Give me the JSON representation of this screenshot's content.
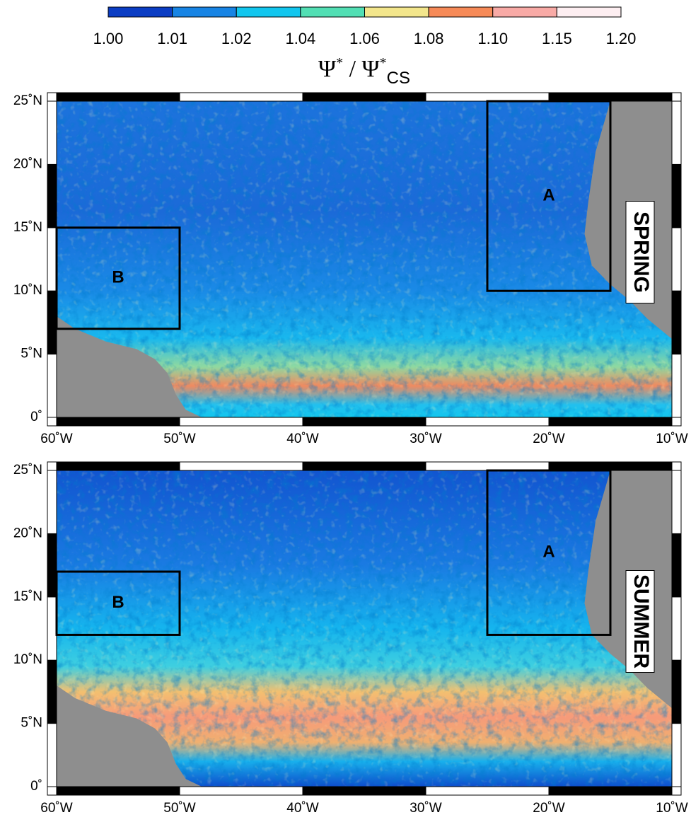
{
  "colorbar": {
    "ticks": [
      {
        "value": 1.0,
        "label": "1.00"
      },
      {
        "value": 1.01,
        "label": "1.01"
      },
      {
        "value": 1.02,
        "label": "1.02"
      },
      {
        "value": 1.04,
        "label": "1.04"
      },
      {
        "value": 1.06,
        "label": "1.06"
      },
      {
        "value": 1.08,
        "label": "1.08"
      },
      {
        "value": 1.1,
        "label": "1.10"
      },
      {
        "value": 1.15,
        "label": "1.15"
      },
      {
        "value": 1.2,
        "label": "1.20"
      }
    ],
    "colors": [
      "#0b3dc4",
      "#1784e4",
      "#12c6ee",
      "#52dfb4",
      "#f3e68c",
      "#f68a58",
      "#f8aaa6",
      "#fdeef1"
    ],
    "label": {
      "base1": "Ψ",
      "sup1": "*",
      "sep": " / Ψ",
      "sup2": "*",
      "sub": "CS"
    }
  },
  "axes": {
    "xlim": [
      -60,
      -10
    ],
    "ylim": [
      0,
      25
    ],
    "xticks": [
      {
        "value": -60,
        "label": "60˚W"
      },
      {
        "value": -50,
        "label": "50˚W"
      },
      {
        "value": -40,
        "label": "40˚W"
      },
      {
        "value": -30,
        "label": "30˚W"
      },
      {
        "value": -20,
        "label": "20˚W"
      },
      {
        "value": -10,
        "label": "10˚W"
      }
    ],
    "yticks": [
      {
        "value": 0,
        "label": "0˚"
      },
      {
        "value": 5,
        "label": "5˚N"
      },
      {
        "value": 10,
        "label": "10˚N"
      },
      {
        "value": 15,
        "label": "15˚N"
      },
      {
        "value": 20,
        "label": "20˚N"
      },
      {
        "value": 25,
        "label": "25˚N"
      }
    ]
  },
  "panels": [
    {
      "season": "SPRING",
      "boxes": [
        {
          "label": "A",
          "lon": [
            -25,
            -15
          ],
          "lat": [
            10,
            25
          ]
        },
        {
          "label": "B",
          "lon": [
            -60,
            -50
          ],
          "lat": [
            7,
            15
          ]
        }
      ]
    },
    {
      "season": "SUMMER",
      "boxes": [
        {
          "label": "A",
          "lon": [
            -25,
            -15
          ],
          "lat": [
            12,
            25
          ]
        },
        {
          "label": "B",
          "lon": [
            -60,
            -50
          ],
          "lat": [
            12,
            17
          ]
        }
      ]
    }
  ]
}
